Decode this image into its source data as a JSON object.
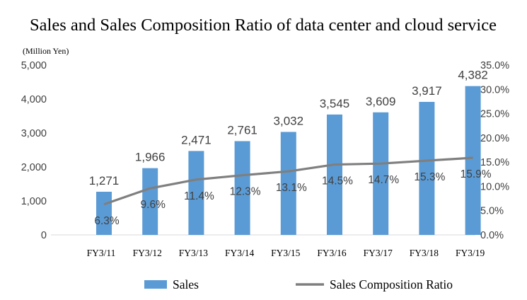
{
  "chart_data": {
    "type": "bar",
    "title": "Sales and Sales Composition Ratio of data center and cloud service",
    "unit_label": "(Million Yen)",
    "categories": [
      "FY3/11",
      "FY3/12",
      "FY3/13",
      "FY3/14",
      "FY3/15",
      "FY3/16",
      "FY3/17",
      "FY3/18",
      "FY3/19"
    ],
    "series": [
      {
        "name": "Sales",
        "type": "bar",
        "axis": "left",
        "color": "#5B9BD5",
        "values": [
          1271,
          1966,
          2471,
          2761,
          3032,
          3545,
          3609,
          3917,
          4382
        ],
        "labels": [
          "1,271",
          "1,966",
          "2,471",
          "2,761",
          "3,032",
          "3,545",
          "3,609",
          "3,917",
          "4,382"
        ]
      },
      {
        "name": "Sales Composition Ratio",
        "type": "line",
        "axis": "right",
        "color": "#7F7F7F",
        "values": [
          6.3,
          9.6,
          11.4,
          12.3,
          13.1,
          14.5,
          14.7,
          15.3,
          15.9
        ],
        "labels": [
          "6.3%",
          "9.6%",
          "11.4%",
          "12.3%",
          "13.1%",
          "14.5%",
          "14.7%",
          "15.3%",
          "15.9%"
        ]
      }
    ],
    "y_left": {
      "lim": [
        0,
        5000
      ],
      "ticks": [
        0,
        1000,
        2000,
        3000,
        4000,
        5000
      ],
      "tick_labels": [
        "0",
        "1,000",
        "2,000",
        "3,000",
        "4,000",
        "5,000"
      ]
    },
    "y_right": {
      "lim": [
        0,
        35
      ],
      "ticks": [
        0,
        5,
        10,
        15,
        20,
        25,
        30,
        35
      ],
      "tick_labels": [
        "0.0%",
        "5.0%",
        "10.0%",
        "15.0%",
        "20.0%",
        "25.0%",
        "30.0%",
        "35.0%"
      ]
    },
    "grid": false,
    "legend": {
      "position": "bottom",
      "entries": [
        "Sales",
        "Sales Composition Ratio"
      ]
    }
  }
}
